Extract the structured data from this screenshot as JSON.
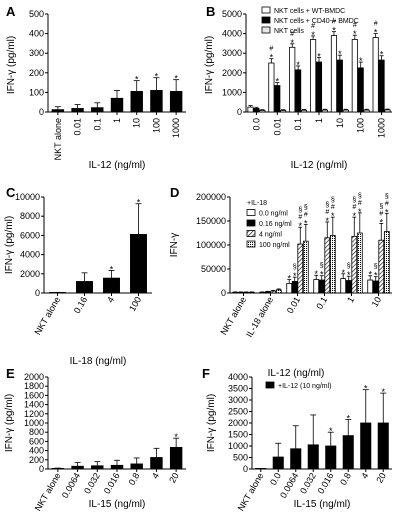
{
  "chart_data": [
    {
      "id": "A",
      "panel_label": "A",
      "type": "bar",
      "ylabel": "IFN-γ (pg/ml)",
      "xlabel": "IL-12 (ng/ml)",
      "ylim": [
        0,
        500
      ],
      "yticks": [
        "0",
        "100",
        "200",
        "300",
        "400",
        "500"
      ],
      "categories": [
        "NKT alone",
        "0.01",
        "0.1",
        "1",
        "10",
        "100",
        "1000"
      ],
      "series": [
        {
          "values": [
            12,
            18,
            22,
            70,
            105,
            110,
            105
          ],
          "errors": [
            15,
            20,
            25,
            40,
            55,
            65,
            60
          ]
        }
      ],
      "significance": [
        "",
        "",
        "",
        "",
        "*",
        "*",
        "*"
      ],
      "legend": []
    },
    {
      "id": "B",
      "panel_label": "B",
      "type": "bar",
      "ylabel": "IFN-γ (pg/ml)",
      "xlabel": "IL-12 (ng/ml)",
      "ylim": [
        0,
        5000
      ],
      "yticks": [
        "0",
        "1000",
        "2000",
        "3000",
        "4000",
        "5000"
      ],
      "categories": [
        "0.0",
        "0.01",
        "0.1",
        "1",
        "10",
        "100",
        "1000"
      ],
      "series": [
        {
          "name": "NKT cells + WT-BMDC",
          "values": [
            250,
            2500,
            3300,
            3700,
            3900,
            3700,
            3800
          ],
          "errors": [
            80,
            220,
            180,
            180,
            200,
            220,
            200
          ]
        },
        {
          "name": "NKT cells + CD40-/- BMDC",
          "values": [
            180,
            1350,
            2150,
            2550,
            2650,
            2250,
            2650
          ],
          "errors": [
            60,
            150,
            200,
            240,
            250,
            300,
            220
          ]
        },
        {
          "name": "NKT cells",
          "values": [
            80,
            80,
            90,
            100,
            100,
            100,
            110
          ],
          "errors": [
            40,
            40,
            40,
            40,
            40,
            40,
            40
          ]
        }
      ],
      "marks": [
        [
          [],
          [
            "*",
            "#"
          ],
          [
            "*",
            "#"
          ],
          [
            "*",
            "#"
          ],
          [
            "*",
            "#"
          ],
          [
            "*",
            "#"
          ],
          [
            "*",
            "#"
          ]
        ],
        [
          [],
          [
            "*"
          ],
          [
            "*"
          ],
          [
            "*"
          ],
          [
            "*"
          ],
          [
            "*"
          ],
          [
            "*"
          ]
        ],
        [
          [],
          [],
          [],
          [],
          [],
          [],
          []
        ]
      ],
      "legend": [
        "NKT cells + WT-BMDC",
        "NKT cells + CD40-/- BMDC",
        "NKT cells"
      ]
    },
    {
      "id": "C",
      "panel_label": "C",
      "type": "bar",
      "ylabel": "IFN-γ (pg/ml)",
      "xlabel": "IL-18 (ng/ml)",
      "ylim": [
        0,
        10000
      ],
      "yticks": [
        "0",
        "2000",
        "4000",
        "6000",
        "8000",
        "10000"
      ],
      "categories": [
        "NKT alone",
        "0.16",
        "4",
        "100"
      ],
      "series": [
        {
          "values": [
            40,
            1200,
            1550,
            6100
          ],
          "errors": [
            30,
            900,
            800,
            3200
          ]
        }
      ],
      "significance": [
        "",
        "",
        "*",
        "*"
      ],
      "legend": []
    },
    {
      "id": "D",
      "panel_label": "D",
      "type": "bar",
      "ylabel": "IFN-γ",
      "xlabel": "IL-12 (ng/ml)",
      "ylim": [
        0,
        200000
      ],
      "yticks": [
        "0",
        "50000",
        "100000",
        "150000",
        "200000"
      ],
      "categories": [
        "NKT alone",
        "IL-18 alone",
        "0.01",
        "0.1",
        "1",
        "10"
      ],
      "series": [
        {
          "name": "0.0 ng/ml",
          "values": [
            1500,
            1500,
            20000,
            28000,
            30000,
            27000
          ],
          "errors": [
            800,
            800,
            8000,
            9000,
            10000,
            9000
          ]
        },
        {
          "name": "0.16 ng/ml",
          "values": [
            1500,
            2500,
            24000,
            27000,
            26000,
            25000
          ],
          "errors": [
            800,
            1000,
            9000,
            9000,
            9000,
            9000
          ]
        },
        {
          "name": "4 ng/ml",
          "values": [
            1500,
            4000,
            102000,
            115000,
            118000,
            110000
          ],
          "errors": [
            800,
            1500,
            35000,
            33000,
            40000,
            35000
          ]
        },
        {
          "name": "100 ng/ml",
          "values": [
            1500,
            6500,
            108000,
            120000,
            125000,
            128000
          ],
          "errors": [
            800,
            2000,
            35000,
            38000,
            42000,
            38000
          ]
        }
      ],
      "marks": [
        [
          [],
          [],
          [
            "*"
          ],
          [
            "*"
          ],
          [
            "*"
          ],
          [
            "*"
          ]
        ],
        [
          [],
          [],
          [
            "*",
            "§"
          ],
          [
            "*",
            "§"
          ],
          [
            "*",
            "§"
          ],
          [
            "*",
            "§"
          ]
        ],
        [
          [],
          [],
          [
            "*",
            "#",
            "§"
          ],
          [
            "*",
            "#",
            "§"
          ],
          [
            "*",
            "#",
            "§"
          ],
          [
            "*",
            "#",
            "§"
          ]
        ],
        [
          [],
          [],
          [
            "*",
            "#",
            "§"
          ],
          [
            "*",
            "#",
            "§"
          ],
          [
            "*",
            "#",
            "§"
          ],
          [
            "*",
            "#",
            "§"
          ]
        ]
      ],
      "legend_title": "+IL-18",
      "legend": [
        "0.0 ng/ml",
        "0.16 ng/ml",
        "4 ng/ml",
        "100 ng/ml"
      ]
    },
    {
      "id": "E",
      "panel_label": "E",
      "type": "bar",
      "ylabel": "IFN-γ (pg/ml)",
      "xlabel": "IL-15 (ng/ml)",
      "ylim": [
        0,
        2000
      ],
      "yticks": [
        "0",
        "200",
        "400",
        "600",
        "800",
        "1000",
        "1200",
        "1400",
        "1600",
        "1800",
        "2000"
      ],
      "categories": [
        "NKT alone",
        "0.0064",
        "0.032",
        "0.016",
        "0.8",
        "4",
        "20"
      ],
      "series": [
        {
          "values": [
            10,
            60,
            70,
            80,
            110,
            250,
            470
          ],
          "errors": [
            10,
            80,
            90,
            110,
            130,
            200,
            200
          ]
        }
      ],
      "significance": [
        "",
        "",
        "",
        "",
        "",
        "",
        "*"
      ],
      "legend": []
    },
    {
      "id": "F",
      "panel_label": "F",
      "type": "bar",
      "ylabel": "IFN-γ (pg/ml)",
      "xlabel": "IL-15 (ng/ml)",
      "ylim": [
        0,
        4000
      ],
      "yticks": [
        "0",
        "500",
        "1000",
        "1500",
        "2000",
        "2500",
        "3000",
        "3500",
        "4000"
      ],
      "categories": [
        "NKT alone",
        "0.0",
        "0.0064",
        "0.032",
        "0.016",
        "0.8",
        "4",
        "20"
      ],
      "series": [
        {
          "name": "+IL-12 (10 ng/ml)",
          "values": [
            10,
            520,
            880,
            1050,
            1000,
            1450,
            2000,
            2000
          ],
          "errors": [
            10,
            600,
            1000,
            1300,
            600,
            700,
            1450,
            1300
          ]
        }
      ],
      "significance": [
        "",
        "",
        "",
        "",
        "*",
        "*",
        "*",
        "*"
      ],
      "legend": [
        "+IL-12 (10 ng/ml)"
      ]
    }
  ]
}
